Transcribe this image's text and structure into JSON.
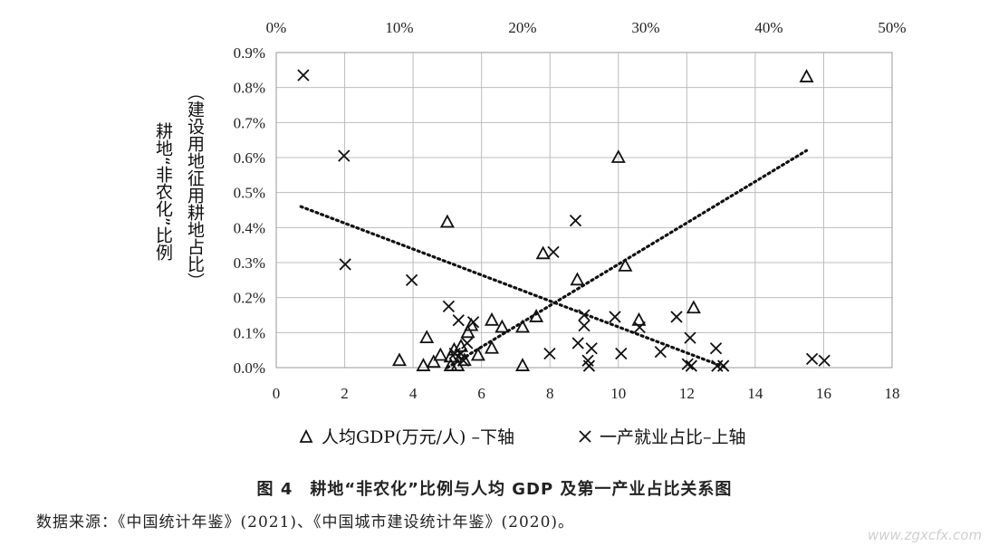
{
  "chart_data": {
    "type": "scatter",
    "title": "",
    "ylabel_left": "耕地“非农化”比例",
    "ylabel_right": "（建设用地征用耕地占比）",
    "bottom_axis": {
      "ticks": [
        "0",
        "2",
        "4",
        "6",
        "8",
        "10",
        "12",
        "14",
        "16",
        "18"
      ],
      "range": [
        0,
        18
      ]
    },
    "top_axis": {
      "ticks": [
        "0%",
        "10%",
        "20%",
        "30%",
        "40%",
        "50%"
      ],
      "range": [
        0,
        50
      ]
    },
    "y_axis": {
      "ticks": [
        "0.0%",
        "0.1%",
        "0.2%",
        "0.3%",
        "0.4%",
        "0.5%",
        "0.6%",
        "0.7%",
        "0.8%",
        "0.9%"
      ],
      "range": [
        0,
        0.9
      ]
    },
    "series": [
      {
        "name": "人均GDP(万元/人) –下轴",
        "axis": "bottom",
        "marker": "triangle",
        "points": [
          [
            3.6,
            0.02
          ],
          [
            4.3,
            0.005
          ],
          [
            4.4,
            0.085
          ],
          [
            4.6,
            0.015
          ],
          [
            4.8,
            0.035
          ],
          [
            5.0,
            0.415
          ],
          [
            5.1,
            0.005
          ],
          [
            5.1,
            0.03
          ],
          [
            5.2,
            0.05
          ],
          [
            5.3,
            0.005
          ],
          [
            5.4,
            0.06
          ],
          [
            5.5,
            0.02
          ],
          [
            5.6,
            0.1
          ],
          [
            5.7,
            0.12
          ],
          [
            5.9,
            0.035
          ],
          [
            6.3,
            0.055
          ],
          [
            6.3,
            0.135
          ],
          [
            6.6,
            0.115
          ],
          [
            7.2,
            0.115
          ],
          [
            7.2,
            0.005
          ],
          [
            7.6,
            0.145
          ],
          [
            7.8,
            0.325
          ],
          [
            8.8,
            0.25
          ],
          [
            10.0,
            0.6
          ],
          [
            10.2,
            0.29
          ],
          [
            10.6,
            0.135
          ],
          [
            12.2,
            0.17
          ],
          [
            15.5,
            0.83
          ]
        ]
      },
      {
        "name": "一产就业占比–上轴",
        "axis": "top",
        "marker": "x",
        "points": [
          [
            2.2,
            0.835
          ],
          [
            5.5,
            0.605
          ],
          [
            5.6,
            0.295
          ],
          [
            11.0,
            0.25
          ],
          [
            14.0,
            0.175
          ],
          [
            14.5,
            0.04
          ],
          [
            14.8,
            0.135
          ],
          [
            15.0,
            0.04
          ],
          [
            15.2,
            0.02
          ],
          [
            15.5,
            0.07
          ],
          [
            16.0,
            0.13
          ],
          [
            22.5,
            0.33
          ],
          [
            22.2,
            0.04
          ],
          [
            24.5,
            0.07
          ],
          [
            24.3,
            0.42
          ],
          [
            25.0,
            0.12
          ],
          [
            25.0,
            0.15
          ],
          [
            25.3,
            0.02
          ],
          [
            25.4,
            0.005
          ],
          [
            25.6,
            0.055
          ],
          [
            27.5,
            0.145
          ],
          [
            28.0,
            0.04
          ],
          [
            29.5,
            0.115
          ],
          [
            31.2,
            0.045
          ],
          [
            32.5,
            0.145
          ],
          [
            33.4,
            0.01
          ],
          [
            33.6,
            0.085
          ],
          [
            33.7,
            0.005
          ],
          [
            35.7,
            0.055
          ],
          [
            35.8,
            0.005
          ],
          [
            36.3,
            0.005
          ],
          [
            43.5,
            0.025
          ],
          [
            44.5,
            0.02
          ]
        ]
      }
    ],
    "trendlines": [
      {
        "series": "人均GDP(万元/人) –下轴",
        "axis": "bottom",
        "from": [
          5.0,
          0.0
        ],
        "to": [
          15.5,
          0.62
        ]
      },
      {
        "series": "一产就业占比–上轴",
        "axis": "top",
        "from": [
          2.0,
          0.46
        ],
        "to": [
          36.5,
          0.0
        ]
      }
    ]
  },
  "caption": "图 4　耕地“非农化”比例与人均 GDP 及第一产业占比关系图",
  "source": "数据来源：《中国统计年鉴》(2021)、《中国城市建设统计年鉴》(2020)。",
  "watermark": "www.zgxcfx.com"
}
